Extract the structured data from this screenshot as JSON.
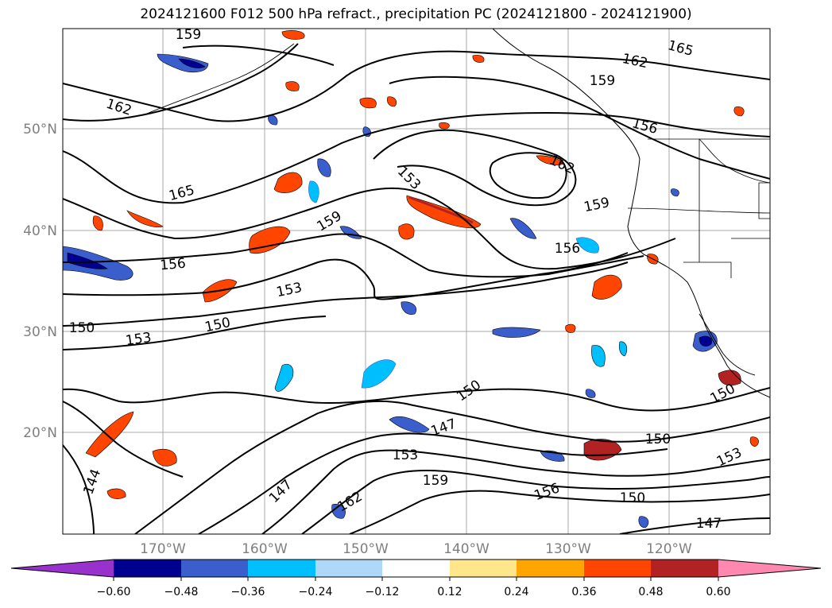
{
  "title": "2024121600 F012 500 hPa refract., precipitation PC (2024121800 - 2024121900)",
  "map": {
    "lat_labels": [
      "50°N",
      "40°N",
      "30°N",
      "20°N"
    ],
    "lon_labels": [
      "170°W",
      "160°W",
      "150°W",
      "140°W",
      "130°W",
      "120°W"
    ],
    "contour_labels": [
      "159",
      "165",
      "162",
      "162",
      "159",
      "156",
      "162",
      "153",
      "165",
      "159",
      "159",
      "156",
      "156",
      "153",
      "150",
      "150",
      "153",
      "150",
      "150",
      "150",
      "147",
      "153",
      "159",
      "147",
      "162",
      "156",
      "150",
      "153",
      "147",
      "144"
    ]
  },
  "colorbar": {
    "ticks": [
      "−0.60",
      "−0.48",
      "−0.36",
      "−0.24",
      "−0.12",
      "0.12",
      "0.24",
      "0.36",
      "0.48",
      "0.60"
    ],
    "colors": [
      "#9932cc",
      "#000090",
      "#3a5fcd",
      "#00bfff",
      "#add8f7",
      "#ffffff",
      "#ffe68a",
      "#ffa500",
      "#ff4500",
      "#b22222",
      "#ff88b0"
    ]
  }
}
